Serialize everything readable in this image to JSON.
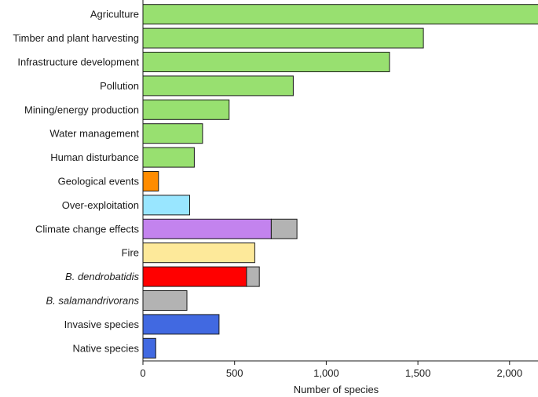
{
  "chart_data": {
    "type": "bar",
    "orientation": "horizontal",
    "stacked": true,
    "xlabel": "Number of species",
    "xlim": [
      0,
      2400
    ],
    "xticks": [
      0,
      500,
      1000,
      1500,
      2000
    ],
    "xtick_labels": [
      "0",
      "500",
      "1,000",
      "1,500",
      "2,000"
    ],
    "grid": false,
    "legend": "none",
    "categories": [
      {
        "label": "Agriculture",
        "italic": false,
        "segments": [
          {
            "value": 2220,
            "color": "#98e070"
          }
        ]
      },
      {
        "label": "Timber and plant harvesting",
        "italic": false,
        "segments": [
          {
            "value": 1530,
            "color": "#98e070"
          }
        ]
      },
      {
        "label": "Infrastructure development",
        "italic": false,
        "segments": [
          {
            "value": 1345,
            "color": "#98e070"
          }
        ]
      },
      {
        "label": "Pollution",
        "italic": false,
        "segments": [
          {
            "value": 820,
            "color": "#98e070"
          }
        ]
      },
      {
        "label": "Mining/energy production",
        "italic": false,
        "segments": [
          {
            "value": 470,
            "color": "#98e070"
          }
        ]
      },
      {
        "label": "Water management",
        "italic": false,
        "segments": [
          {
            "value": 325,
            "color": "#98e070"
          }
        ]
      },
      {
        "label": "Human disturbance",
        "italic": false,
        "segments": [
          {
            "value": 280,
            "color": "#98e070"
          }
        ]
      },
      {
        "label": "Geological events",
        "italic": false,
        "segments": [
          {
            "value": 85,
            "color": "#ff8c00"
          }
        ]
      },
      {
        "label": "Over-exploitation",
        "italic": false,
        "segments": [
          {
            "value": 255,
            "color": "#99e6ff"
          }
        ]
      },
      {
        "label": "Climate change effects",
        "italic": false,
        "segments": [
          {
            "value": 700,
            "color": "#c383ee"
          },
          {
            "value": 140,
            "color": "#b3b3b3"
          }
        ]
      },
      {
        "label": "Fire",
        "italic": false,
        "segments": [
          {
            "value": 610,
            "color": "#fde99a"
          }
        ]
      },
      {
        "label": "B. dendrobatidis",
        "italic": true,
        "segments": [
          {
            "value": 565,
            "color": "#ff0000"
          },
          {
            "value": 70,
            "color": "#b3b3b3"
          }
        ]
      },
      {
        "label": "B. salamandrivorans",
        "italic": true,
        "segments": [
          {
            "value": 240,
            "color": "#b3b3b3"
          }
        ]
      },
      {
        "label": "Invasive species",
        "italic": false,
        "segments": [
          {
            "value": 415,
            "color": "#4169e1"
          }
        ]
      },
      {
        "label": "Native species",
        "italic": false,
        "segments": [
          {
            "value": 70,
            "color": "#4169e1"
          }
        ]
      }
    ]
  }
}
